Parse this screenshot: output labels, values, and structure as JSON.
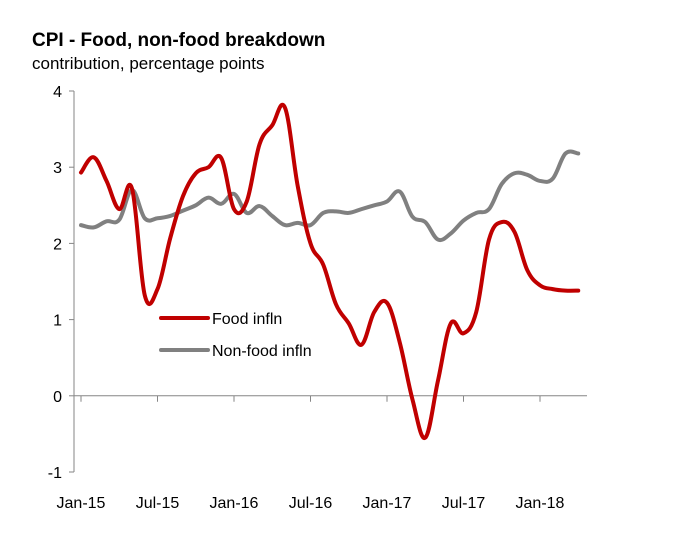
{
  "chart_data": {
    "type": "line",
    "title": "CPI - Food, non-food breakdown",
    "subtitle": "contribution, percentage points",
    "xlabel": "",
    "ylabel": "",
    "ylim": [
      -1,
      4
    ],
    "yticks": [
      "-1",
      "0",
      "1",
      "2",
      "3",
      "4"
    ],
    "xticks": [
      "Jan-15",
      "Jul-15",
      "Jan-16",
      "Jul-16",
      "Jan-17",
      "Jul-17",
      "Jan-18"
    ],
    "x": [
      "Jan-15",
      "Feb-15",
      "Mar-15",
      "Apr-15",
      "May-15",
      "Jun-15",
      "Jul-15",
      "Aug-15",
      "Sep-15",
      "Oct-15",
      "Nov-15",
      "Dec-15",
      "Jan-16",
      "Feb-16",
      "Mar-16",
      "Apr-16",
      "May-16",
      "Jun-16",
      "Jul-16",
      "Aug-16",
      "Sep-16",
      "Oct-16",
      "Nov-16",
      "Dec-16",
      "Jan-17",
      "Feb-17",
      "Mar-17",
      "Apr-17",
      "May-17",
      "Jun-17",
      "Jul-17",
      "Aug-17",
      "Sep-17",
      "Oct-17",
      "Nov-17",
      "Dec-17",
      "Jan-18",
      "Feb-18",
      "Mar-18",
      "Apr-18"
    ],
    "legend_position": "center-left",
    "series": [
      {
        "name": "Food infln",
        "color": "#C00000",
        "values": [
          2.93,
          3.13,
          2.82,
          2.45,
          2.72,
          1.32,
          1.4,
          2.07,
          2.62,
          2.92,
          3.0,
          3.12,
          2.45,
          2.55,
          3.3,
          3.55,
          3.78,
          2.75,
          2.0,
          1.72,
          1.2,
          0.95,
          0.67,
          1.1,
          1.22,
          0.7,
          -0.05,
          -0.55,
          0.2,
          0.95,
          0.82,
          1.1,
          2.05,
          2.28,
          2.15,
          1.65,
          1.45,
          1.4,
          1.38,
          1.38
        ]
      },
      {
        "name": "Non-food infln",
        "color": "#808080",
        "values": [
          2.24,
          2.21,
          2.29,
          2.31,
          2.7,
          2.33,
          2.33,
          2.36,
          2.43,
          2.5,
          2.6,
          2.52,
          2.65,
          2.4,
          2.49,
          2.36,
          2.24,
          2.27,
          2.24,
          2.4,
          2.42,
          2.4,
          2.45,
          2.5,
          2.55,
          2.68,
          2.35,
          2.28,
          2.05,
          2.13,
          2.3,
          2.4,
          2.45,
          2.78,
          2.92,
          2.9,
          2.82,
          2.85,
          3.18,
          3.18
        ]
      }
    ]
  }
}
